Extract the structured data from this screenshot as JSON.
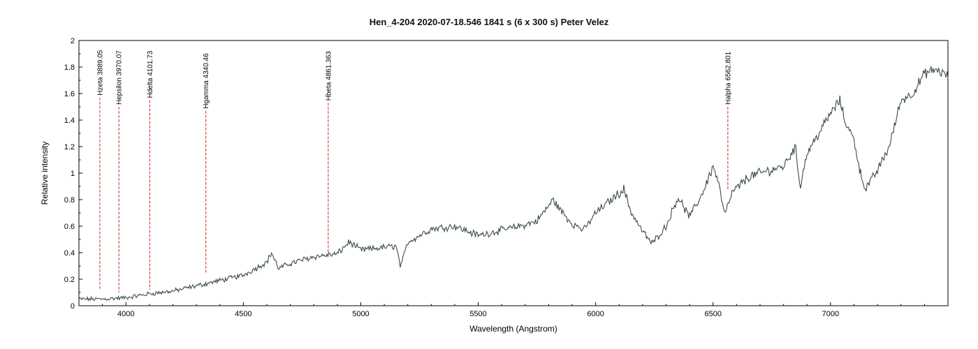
{
  "chart_data": {
    "type": "line",
    "title": "Hen_4-204   2020-07-18.546   1841 s (6 x 300 s)   Peter Velez",
    "xlabel": "Wavelength (Angstrom)",
    "ylabel": "Relative intensity",
    "xlim": [
      3800,
      7500
    ],
    "ylim": [
      0,
      2
    ],
    "grid": false,
    "x_ticks": [
      4000,
      4500,
      5000,
      5500,
      6000,
      6500,
      7000
    ],
    "x_tick_labels": [
      "4000",
      "4500",
      "5000",
      "5500",
      "6000",
      "6500",
      "7000"
    ],
    "y_ticks": [
      0,
      0.2,
      0.4,
      0.6,
      0.8,
      1,
      1.2,
      1.4,
      1.6,
      1.8,
      2
    ],
    "y_tick_labels": [
      "0",
      "0.2",
      "0.4",
      "0.6",
      "0.8",
      "1",
      "1.2",
      "1.4",
      "1.6",
      "1.8",
      "2"
    ],
    "series": [
      {
        "name": "spectrum",
        "color": "#3a4d48",
        "anchors": [
          [
            3800,
            0.05
          ],
          [
            3900,
            0.05
          ],
          [
            4000,
            0.06
          ],
          [
            4100,
            0.09
          ],
          [
            4200,
            0.11
          ],
          [
            4300,
            0.15
          ],
          [
            4400,
            0.19
          ],
          [
            4500,
            0.23
          ],
          [
            4600,
            0.33
          ],
          [
            4620,
            0.4
          ],
          [
            4650,
            0.28
          ],
          [
            4700,
            0.32
          ],
          [
            4800,
            0.37
          ],
          [
            4900,
            0.39
          ],
          [
            4950,
            0.48
          ],
          [
            5000,
            0.42
          ],
          [
            5100,
            0.44
          ],
          [
            5150,
            0.45
          ],
          [
            5170,
            0.29
          ],
          [
            5200,
            0.48
          ],
          [
            5300,
            0.58
          ],
          [
            5400,
            0.6
          ],
          [
            5500,
            0.53
          ],
          [
            5600,
            0.57
          ],
          [
            5700,
            0.61
          ],
          [
            5750,
            0.64
          ],
          [
            5820,
            0.8
          ],
          [
            5850,
            0.72
          ],
          [
            5900,
            0.62
          ],
          [
            5950,
            0.57
          ],
          [
            6000,
            0.7
          ],
          [
            6100,
            0.85
          ],
          [
            6120,
            0.88
          ],
          [
            6150,
            0.71
          ],
          [
            6200,
            0.56
          ],
          [
            6240,
            0.47
          ],
          [
            6300,
            0.6
          ],
          [
            6350,
            0.82
          ],
          [
            6400,
            0.67
          ],
          [
            6450,
            0.83
          ],
          [
            6500,
            1.05
          ],
          [
            6520,
            0.95
          ],
          [
            6550,
            0.68
          ],
          [
            6580,
            0.85
          ],
          [
            6650,
            0.97
          ],
          [
            6700,
            1.0
          ],
          [
            6800,
            1.05
          ],
          [
            6850,
            1.2
          ],
          [
            6870,
            0.9
          ],
          [
            6900,
            1.15
          ],
          [
            6950,
            1.3
          ],
          [
            7000,
            1.45
          ],
          [
            7040,
            1.55
          ],
          [
            7060,
            1.4
          ],
          [
            7100,
            1.25
          ],
          [
            7130,
            0.98
          ],
          [
            7150,
            0.88
          ],
          [
            7200,
            1.02
          ],
          [
            7250,
            1.2
          ],
          [
            7300,
            1.55
          ],
          [
            7350,
            1.6
          ],
          [
            7400,
            1.75
          ],
          [
            7450,
            1.78
          ],
          [
            7500,
            1.73
          ]
        ]
      }
    ],
    "annotations": [
      {
        "label": "Hzeta 3889.05",
        "x": 3889.05,
        "y_top": 1.57,
        "y_bottom": 0.12,
        "color": "#e0201e"
      },
      {
        "label": "Hepsilon 3970.07",
        "x": 3970.07,
        "y_top": 1.5,
        "y_bottom": 0.1,
        "color": "#e0201e"
      },
      {
        "label": "Hdelta 4101.73",
        "x": 4101.73,
        "y_top": 1.55,
        "y_bottom": 0.12,
        "color": "#e0201e"
      },
      {
        "label": "Hgamma 4340.46",
        "x": 4340.46,
        "y_top": 1.47,
        "y_bottom": 0.25,
        "color": "#e0201e"
      },
      {
        "label": "Hbeta 4861.363",
        "x": 4861.363,
        "y_top": 1.53,
        "y_bottom": 0.38,
        "color": "#e0201e"
      },
      {
        "label": "Halpha 6562.801",
        "x": 6562.801,
        "y_top": 1.5,
        "y_bottom": 0.87,
        "color": "#e0201e"
      }
    ]
  }
}
